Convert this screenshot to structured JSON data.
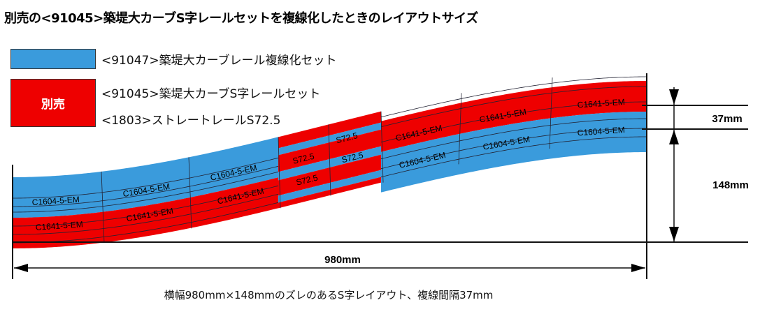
{
  "title": "別売の<91045>築堤大カーブS字レールセットを複線化したときのレイアウトサイズ",
  "colors": {
    "double_track_set": "#3a9bdc",
    "sold_separately": "#ee0000"
  },
  "legend": [
    {
      "label": "<91047>築堤大カーブレール複線化セット",
      "color": "#3a9bdc"
    },
    {
      "badge": "別売",
      "label": "<91045>築堤大カーブS字レールセット",
      "color": "#ee0000"
    },
    {
      "label": "<1803>ストレートレールS72.5"
    }
  ],
  "track_labels": {
    "left_blue": [
      "C1604-5-EM",
      "C1604-5-EM",
      "C1604-5-EM"
    ],
    "left_red": [
      "C1641-5-EM",
      "C1641-5-EM",
      "C1641-5-EM"
    ],
    "straights": [
      "S72.5",
      "S72.5",
      "S72.5",
      "S72.5"
    ],
    "right_red": [
      "C1641-5-EM",
      "C1641-5-EM",
      "C1641-5-EM"
    ],
    "right_blue": [
      "C1604-5-EM",
      "C1604-5-EM",
      "C1604-5-EM"
    ]
  },
  "dimensions": {
    "track_spacing": "37mm",
    "offset": "148mm",
    "width": "980mm"
  },
  "caption": "横幅980mm×148mmのズレのあるS字レイアウト、複線間隔37mm"
}
